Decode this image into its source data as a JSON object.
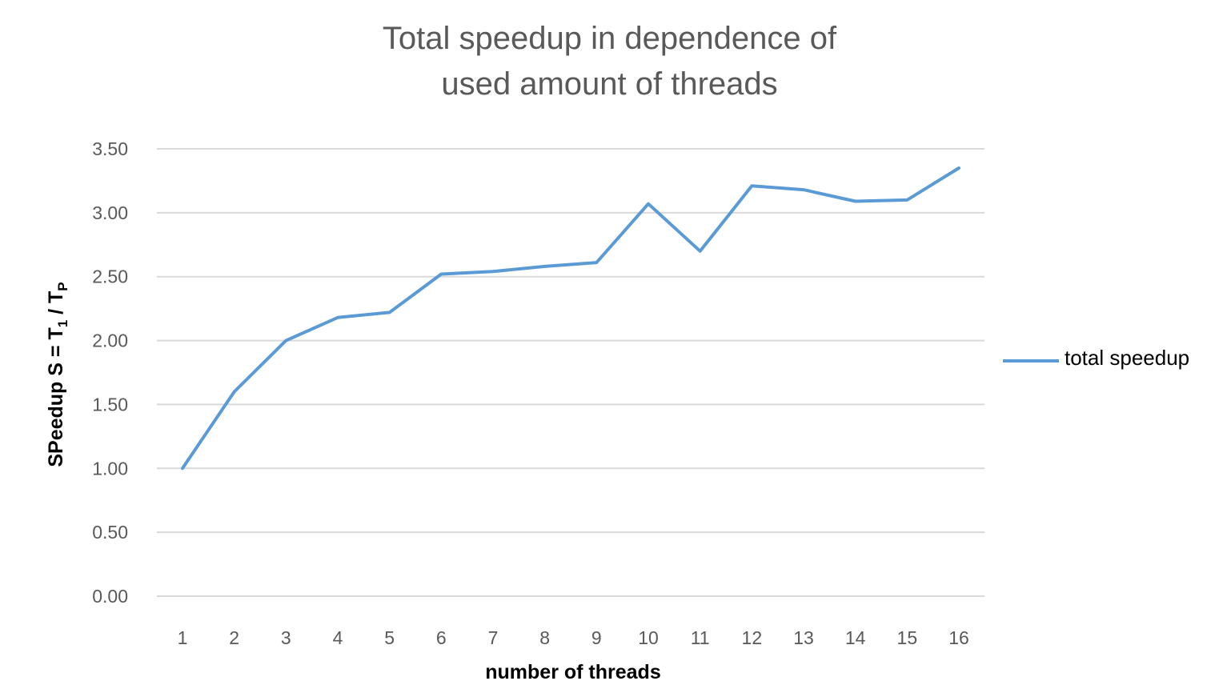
{
  "chart_data": {
    "type": "line",
    "title_line1": "Total speedup in dependence of",
    "title_line2": "used amount of threads",
    "xlabel": "number of threads",
    "ylabel_main": "SPeedup S = T",
    "ylabel_sub1": "1",
    "ylabel_mid": " / T",
    "ylabel_sub2": "P",
    "categories": [
      "1",
      "2",
      "3",
      "4",
      "5",
      "6",
      "7",
      "8",
      "9",
      "10",
      "11",
      "12",
      "13",
      "14",
      "15",
      "16"
    ],
    "yticks": [
      "0.00",
      "0.50",
      "1.00",
      "1.50",
      "2.00",
      "2.50",
      "3.00",
      "3.50"
    ],
    "ylim": [
      0,
      3.5
    ],
    "grid": true,
    "legend_position": "right",
    "series": [
      {
        "name": "total speedup",
        "color": "#5B9BD5",
        "values": [
          1.0,
          1.6,
          2.0,
          2.18,
          2.22,
          2.52,
          2.54,
          2.58,
          2.61,
          3.07,
          2.7,
          3.21,
          3.18,
          3.09,
          3.1,
          3.35
        ]
      }
    ]
  }
}
